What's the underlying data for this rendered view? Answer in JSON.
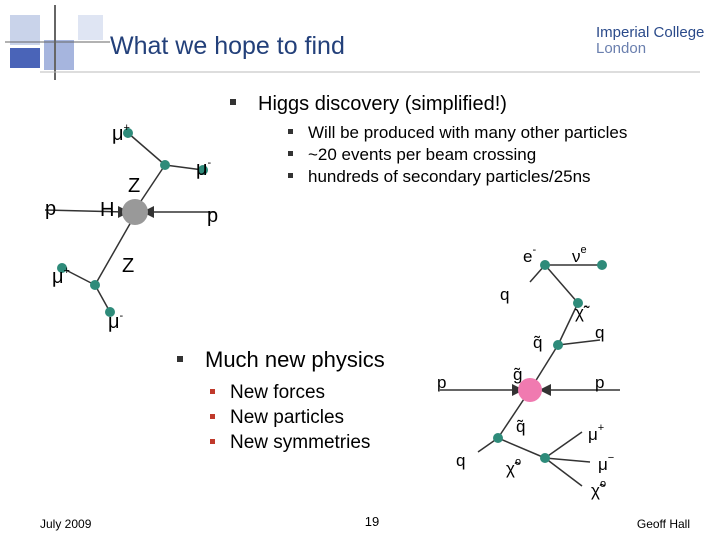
{
  "header": {
    "title": "What we hope to find",
    "logo_line1": "Imperial College",
    "logo_line2": "London"
  },
  "bullets": [
    {
      "text": "Higgs discovery (simplified!)",
      "items": [
        "Will be produced with many other particles",
        "~20 events per beam crossing",
        "hundreds of secondary particles/25ns"
      ]
    },
    {
      "text": "Much new physics",
      "items": [
        "New forces",
        "New particles",
        "New symmetries"
      ]
    }
  ],
  "higgs_diagram": {
    "labels": [
      {
        "base": "μ",
        "sup": "+"
      },
      {
        "base": "μ",
        "sup": "-"
      },
      {
        "base": "Z"
      },
      {
        "base": "p"
      },
      {
        "base": "H"
      },
      {
        "base": "p"
      },
      {
        "base": "Z"
      },
      {
        "base": "μ",
        "sup": "+"
      },
      {
        "base": "μ",
        "sup": "-"
      }
    ]
  },
  "susy_diagram": {
    "labels": [
      {
        "base": "e",
        "sup": "-"
      },
      {
        "base": "ν",
        "sup": "e"
      },
      {
        "base": "q"
      },
      {
        "base": "χ̃",
        "sup": "-"
      },
      {
        "base": "q̃"
      },
      {
        "base": "q"
      },
      {
        "base": "g̃"
      },
      {
        "base": "p"
      },
      {
        "base": "p"
      },
      {
        "base": "q̃"
      },
      {
        "base": "μ",
        "sup": "+"
      },
      {
        "base": "q"
      },
      {
        "base": "χ̃",
        "sup": "o"
      },
      {
        "base": "μ",
        "sup": "−"
      },
      {
        "base": "χ̃",
        "sup": "o"
      }
    ]
  },
  "footer": {
    "date": "July 2009",
    "page": "19",
    "author": "Geoff Hall"
  }
}
